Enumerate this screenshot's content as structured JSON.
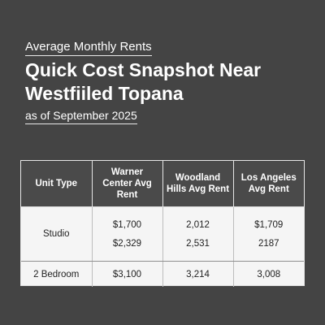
{
  "header": {
    "kicker": "Average Monthly Rents",
    "title": "Quick Cost Snapshot Near Westfiiled Topana",
    "as_of": "as of September 2025"
  },
  "table": {
    "columns": [
      {
        "label": "Unit Type"
      },
      {
        "label": "Warner Center Avg Rent"
      },
      {
        "label": "Woodland Hills Avg Rent"
      },
      {
        "label": "Los Angeles Avg Rent"
      }
    ],
    "rows": [
      {
        "unit_type": "Studio",
        "values": [
          [
            "$1,700",
            "$2,329"
          ],
          [
            "2,012",
            "2,531"
          ],
          [
            "$1,709",
            "2187"
          ]
        ]
      },
      {
        "unit_type": "2 Bedroom",
        "values": [
          [
            "$3,100"
          ],
          [
            "3,214"
          ],
          [
            "3,008"
          ]
        ]
      }
    ]
  },
  "colors": {
    "background": "#444444",
    "header_row": "#4a4a4a",
    "table_body": "#f5f5f5",
    "text_light": "#ffffff",
    "text_dark": "#222222"
  }
}
